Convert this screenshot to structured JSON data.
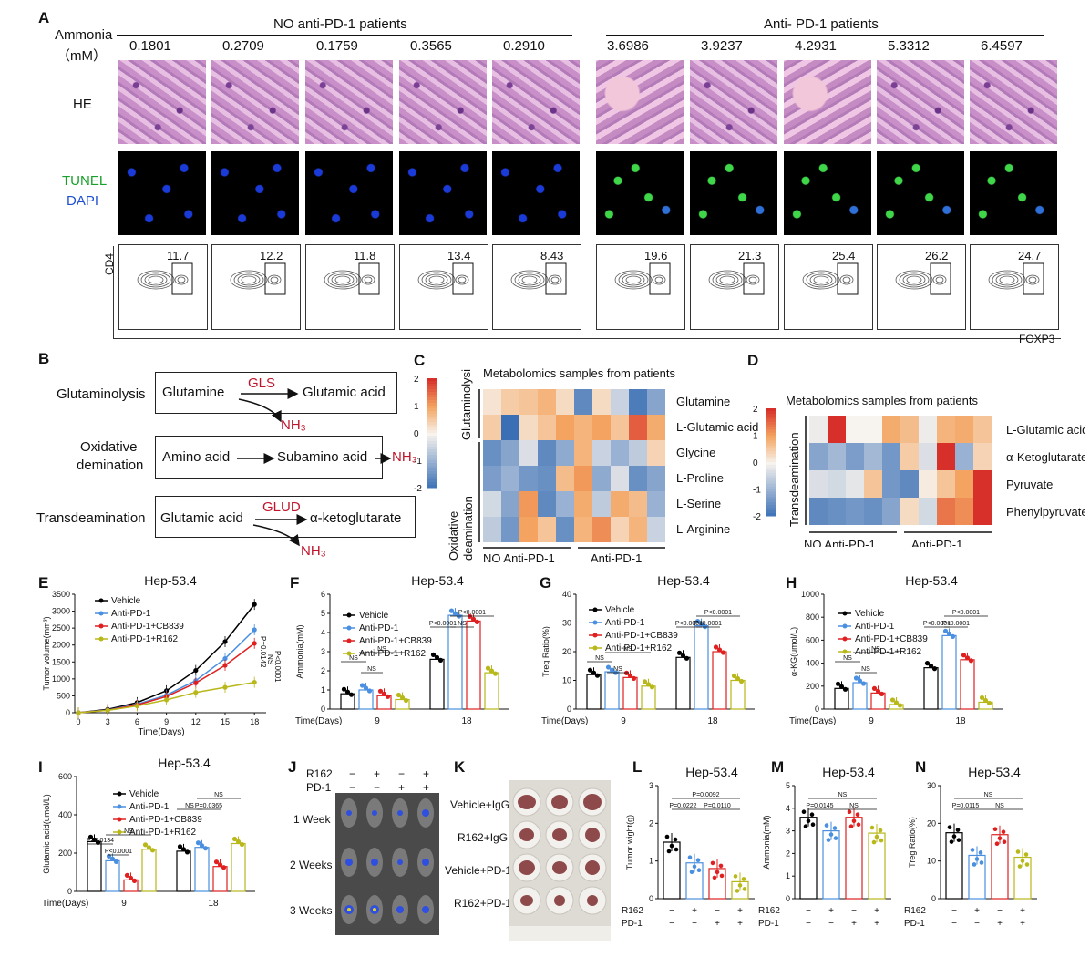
{
  "panelA": {
    "label": "A",
    "ammonia_label1": "Ammonia",
    "ammonia_label2": "（mM）",
    "group1": "NO anti-PD-1 patients",
    "group2": "Anti- PD-1 patients",
    "ammonia_values": [
      "0.1801",
      "0.2709",
      "0.1759",
      "0.3565",
      "0.2910",
      "3.6986",
      "3.9237",
      "4.2931",
      "5.3312",
      "6.4597"
    ],
    "row_he": "HE",
    "row_tunel": "TUNEL",
    "row_dapi": "DAPI",
    "flow_values": [
      "11.7",
      "12.2",
      "11.8",
      "13.4",
      "8.43",
      "19.6",
      "21.3",
      "25.4",
      "26.2",
      "24.7"
    ],
    "y_axis": "CD4",
    "x_axis": "FOXP3"
  },
  "panelB": {
    "label": "B",
    "r1_name": "Glutaminolysis",
    "r1_a": "Glutamine",
    "r1_enzyme": "GLS",
    "r1_b": "Glutamic acid",
    "r1_out": "NH₃",
    "r2_name1": "Oxidative",
    "r2_name2": "demination",
    "r2_a": "Amino acid",
    "r2_b": "Subamino acid",
    "r2_out": "NH₃",
    "r3_name": "Transdeamination",
    "r3_a": "Glutamic acid",
    "r3_enzyme": "GLUD",
    "r3_b": "α-ketoglutarate",
    "r3_out": "NH₃"
  },
  "panelC": {
    "label": "C",
    "title": "Metabolomics samples from patients",
    "scale": [
      "2",
      "1",
      "0",
      "-1",
      "-2"
    ],
    "group_a": "Glutaminolysis",
    "group_b1": "Oxidative",
    "group_b2": "deamination",
    "rows": [
      "Glutamine",
      "L-Glutamic acid",
      "Glycine",
      "L-Proline",
      "L-Serine",
      "L-Arginine"
    ],
    "xg1": "NO Anti-PD-1",
    "xg2": "Anti-PD-1"
  },
  "panelD": {
    "label": "D",
    "title": "Metabolomics samples from patients",
    "scale": [
      "2",
      "1",
      "0",
      "-1",
      "-2"
    ],
    "group": "Transdeamination",
    "rows": [
      "L-Glutamic acid",
      "α-Ketoglutarate",
      "Pyruvate",
      "Phenylpyruvate"
    ],
    "xg1": "NO Anti-PD-1",
    "xg2": "Anti-PD-1"
  },
  "colors": {
    "vehicle": "#000000",
    "pd1": "#4a8fe0",
    "cb839": "#e02020",
    "r162": "#b8b81a",
    "heat_hi": "#d7302a",
    "heat_mid": "#f7f3ee",
    "heat_lo": "#3a6fb5"
  },
  "chart_data": [
    {
      "type": "line",
      "panel": "E",
      "title": "Hep-53.4",
      "ylabel": "Tumor volume(mm³)",
      "xlabel": "Time(Days)",
      "x": [
        0,
        3,
        6,
        9,
        12,
        15,
        18
      ],
      "ylim": [
        0,
        3500
      ],
      "yticks": [
        "0",
        "500",
        "1000",
        "1500",
        "2000",
        "2500",
        "3000",
        "3500"
      ],
      "series": [
        {
          "name": "Vehicle",
          "values": [
            0,
            100,
            300,
            650,
            1250,
            2100,
            3200
          ]
        },
        {
          "name": "Anti-PD-1",
          "values": [
            0,
            80,
            250,
            520,
            950,
            1600,
            2450
          ]
        },
        {
          "name": "Anti-PD-1+CB839",
          "values": [
            0,
            75,
            230,
            480,
            880,
            1400,
            2050
          ]
        },
        {
          "name": "Anti-PD-1+R162",
          "values": [
            0,
            70,
            200,
            380,
            600,
            750,
            900
          ]
        }
      ],
      "annotations": [
        "P=0.0142",
        "NS",
        "P<0.0001"
      ]
    },
    {
      "type": "bar",
      "panel": "F",
      "title": "Hep-53.4",
      "ylabel": "Ammonia(mM)",
      "xlabel": "Time(Days)",
      "categories": [
        "9",
        "18"
      ],
      "ylim": [
        0,
        6
      ],
      "yticks": [
        "0",
        "1",
        "2",
        "3",
        "4",
        "5",
        "6"
      ],
      "series": [
        {
          "name": "Vehicle",
          "values": [
            0.8,
            2.6
          ]
        },
        {
          "name": "Anti-PD-1",
          "values": [
            1.0,
            4.9
          ]
        },
        {
          "name": "Anti-PD-1+CB839",
          "values": [
            0.7,
            4.6
          ]
        },
        {
          "name": "Anti-PD-1+R162",
          "values": [
            0.5,
            1.9
          ]
        }
      ],
      "annotations": [
        "NS",
        "NS",
        "NS",
        "P<0.0001",
        "NS",
        "P<0.0001"
      ]
    },
    {
      "type": "bar",
      "panel": "G",
      "title": "Hep-53.4",
      "ylabel": "Treg Ratio(%)",
      "xlabel": "Time(Days)",
      "categories": [
        "9",
        "18"
      ],
      "ylim": [
        0,
        40
      ],
      "yticks": [
        "0",
        "10",
        "20",
        "30",
        "40"
      ],
      "series": [
        {
          "name": "Vehicle",
          "values": [
            12,
            18
          ]
        },
        {
          "name": "Anti-PD-1",
          "values": [
            13,
            29
          ]
        },
        {
          "name": "Anti-PD-1+CB839",
          "values": [
            11,
            20
          ]
        },
        {
          "name": "Anti-PD-1+R162",
          "values": [
            8,
            10
          ]
        }
      ],
      "annotations": [
        "NS",
        "NS",
        "NS",
        "P<0.0001",
        "P<0.0001",
        "P<0.0001"
      ]
    },
    {
      "type": "bar",
      "panel": "H",
      "title": "Hep-53.4",
      "ylabel": "α-KG(umol/L)",
      "xlabel": "Time(Days)",
      "categories": [
        "9",
        "18"
      ],
      "ylim": [
        0,
        1000
      ],
      "yticks": [
        "0",
        "200",
        "400",
        "600",
        "800",
        "1000"
      ],
      "series": [
        {
          "name": "Vehicle",
          "values": [
            180,
            360
          ]
        },
        {
          "name": "Anti-PD-1",
          "values": [
            230,
            640
          ]
        },
        {
          "name": "Anti-PD-1+CB839",
          "values": [
            140,
            430
          ]
        },
        {
          "name": "Anti-PD-1+R162",
          "values": [
            40,
            60
          ]
        }
      ],
      "annotations": [
        "NS",
        "NS",
        "NS",
        "P<0.0001",
        "P<0.0001",
        "P<0.0001"
      ]
    },
    {
      "type": "bar",
      "panel": "I",
      "title": "Hep-53.4",
      "ylabel": "Glutamic acid(umol/L)",
      "xlabel": "Time(Days)",
      "categories": [
        "9",
        "18"
      ],
      "ylim": [
        0,
        600
      ],
      "yticks": [
        "0",
        "200",
        "400",
        "600"
      ],
      "series": [
        {
          "name": "Vehicle",
          "values": [
            260,
            210
          ]
        },
        {
          "name": "Anti-PD-1",
          "values": [
            160,
            230
          ]
        },
        {
          "name": "Anti-PD-1+CB839",
          "values": [
            60,
            130
          ]
        },
        {
          "name": "Anti-PD-1+R162",
          "values": [
            220,
            250
          ]
        }
      ],
      "annotations": [
        "P=0.0134",
        "P<0.0001",
        "NS",
        "NS",
        "P=0.0365",
        "NS"
      ]
    },
    {
      "type": "bar",
      "panel": "L",
      "title": "Hep-53.4",
      "ylabel": "Tumor wight(g)",
      "ylim": [
        0,
        3
      ],
      "yticks": [
        "0",
        "1",
        "2",
        "3"
      ],
      "values": [
        1.5,
        0.95,
        0.8,
        0.45
      ],
      "annotations": [
        "P=0.0092",
        "P=0.0222",
        "P=0.0110"
      ]
    },
    {
      "type": "bar",
      "panel": "M",
      "title": "Hep-53.4",
      "ylabel": "Ammonia(mM)",
      "ylim": [
        0,
        5
      ],
      "yticks": [
        "0",
        "1",
        "2",
        "3",
        "4",
        "5"
      ],
      "values": [
        3.6,
        3.0,
        3.6,
        2.9
      ],
      "annotations": [
        "NS",
        "P=0.0145",
        "NS"
      ]
    },
    {
      "type": "bar",
      "panel": "N",
      "title": "Hep-53.4",
      "ylabel": "Treg Ratio(%)",
      "ylim": [
        0,
        30
      ],
      "yticks": [
        "0",
        "10",
        "20",
        "30"
      ],
      "values": [
        17.5,
        11.5,
        17,
        11
      ],
      "annotations": [
        "NS",
        "P=0.0115",
        "NS"
      ]
    }
  ],
  "legend4": [
    "Vehicle",
    "Anti-PD-1",
    "Anti-PD-1+CB839",
    "Anti-PD-1+R162"
  ],
  "treatment": {
    "r162": "R162",
    "pd1": "PD-1",
    "r162_signs": [
      "−",
      "+",
      "−",
      "+"
    ],
    "pd1_signs": [
      "−",
      "−",
      "+",
      "+"
    ]
  },
  "panelJ": {
    "label": "J",
    "r162": "R162",
    "pd1": "PD-1",
    "r162_signs": [
      "−",
      "+",
      "−",
      "+"
    ],
    "pd1_signs": [
      "−",
      "−",
      "+",
      "+"
    ],
    "weeks": [
      "1 Week",
      "2 Weeks",
      "3 Weeks"
    ]
  },
  "panelK": {
    "label": "K",
    "rows": [
      "Vehicle+IgG",
      "R162+IgG",
      "Vehicle+PD-1",
      "R162+PD-1"
    ]
  },
  "labels": {
    "E": "E",
    "F": "F",
    "G": "G",
    "H": "H",
    "I": "I",
    "L": "L",
    "M": "M",
    "N": "N"
  }
}
